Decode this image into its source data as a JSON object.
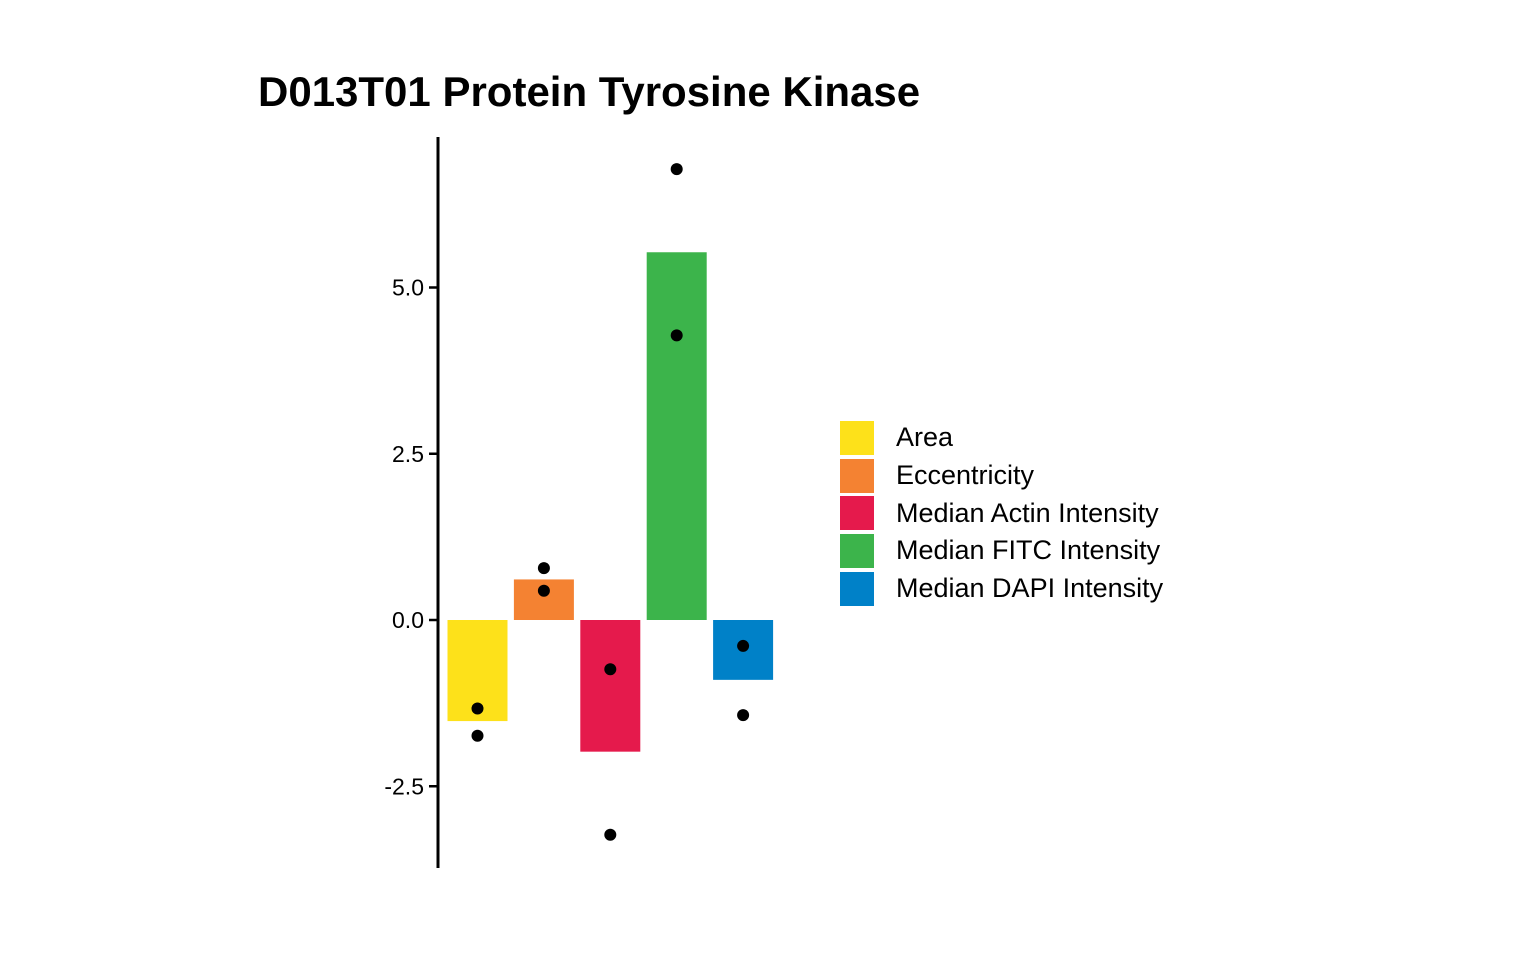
{
  "chart_data": {
    "type": "bar",
    "title": "D013T01 Protein Tyrosine Kinase",
    "xlabel": "",
    "ylabel": "",
    "ylim": [
      -3.75,
      7.25
    ],
    "y_ticks": [
      "5.0",
      "2.5",
      "0.0",
      "-2.5"
    ],
    "y_tick_values": [
      5.0,
      2.5,
      0.0,
      -2.5
    ],
    "grid": false,
    "legend_position": "right",
    "categories": [
      "Area",
      "Eccentricity",
      "Median Actin Intensity",
      "Median FITC Intensity",
      "Median DAPI Intensity"
    ],
    "values": [
      -1.52,
      0.61,
      -1.98,
      5.53,
      -0.9
    ],
    "points": [
      [
        -1.33,
        -1.74
      ],
      [
        0.78,
        0.44
      ],
      [
        -0.74,
        -3.23
      ],
      [
        6.78,
        4.28
      ],
      [
        -0.39,
        -1.43
      ]
    ],
    "colors": [
      "#FDE11A",
      "#F48232",
      "#E51A4C",
      "#3CB44B",
      "#0081C8"
    ]
  }
}
